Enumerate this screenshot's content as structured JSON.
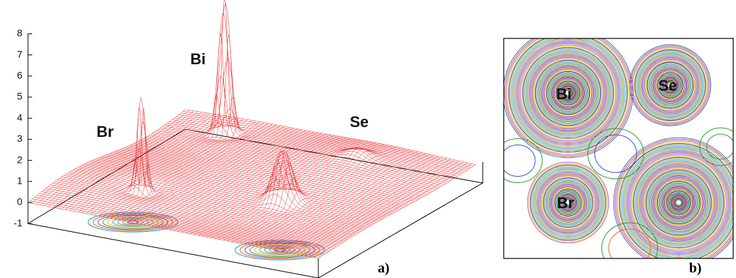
{
  "panel_a": {
    "z_ticks": [
      8,
      7,
      6,
      5,
      4,
      3,
      2,
      1,
      0,
      -1
    ],
    "atoms": {
      "bi": "Bi",
      "br": "Br",
      "se": "Se"
    },
    "label": "a)"
  },
  "panel_b": {
    "atoms": {
      "bi": "Bi",
      "se": "Se",
      "br": "Br"
    },
    "label": "b)"
  }
}
